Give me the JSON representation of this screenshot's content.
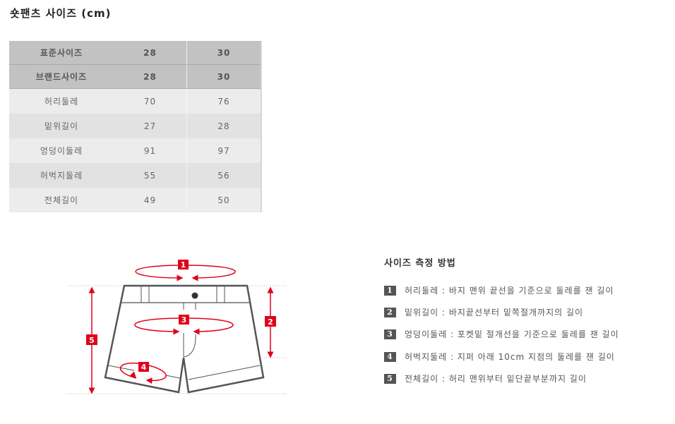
{
  "title": "숏팬츠 사이즈 (cm)",
  "size_table": {
    "header_rows": [
      {
        "label": "표준사이즈",
        "values": [
          "28",
          "30"
        ]
      },
      {
        "label": "브랜드사이즈",
        "values": [
          "28",
          "30"
        ]
      }
    ],
    "rows": [
      {
        "label": "허리둘레",
        "values": [
          "70",
          "76"
        ]
      },
      {
        "label": "밑위길이",
        "values": [
          "27",
          "28"
        ]
      },
      {
        "label": "엉덩이둘레",
        "values": [
          "91",
          "97"
        ]
      },
      {
        "label": "허벅지둘레",
        "values": [
          "55",
          "56"
        ]
      },
      {
        "label": "전체길이",
        "values": [
          "49",
          "50"
        ]
      }
    ]
  },
  "diagram": {
    "markers": [
      "1",
      "2",
      "3",
      "4",
      "5"
    ],
    "accent_color": "#e0001a"
  },
  "method": {
    "title": "사이즈 측정 방법",
    "items": [
      {
        "num": "1",
        "text": "허리둘레 : 바지 맨위 끝선을 기준으로 둘레를 잰 길이"
      },
      {
        "num": "2",
        "text": "밑위길이 : 바지끝선부터 밑쪽절개까지의 길이"
      },
      {
        "num": "3",
        "text": "엉덩이둘레 : 포켓밑 절개선을 기준으로 둘레를 잰 길이"
      },
      {
        "num": "4",
        "text": "허벅지둘레 : 지퍼 아래 10cm 지점의 둘레를 잰 길이"
      },
      {
        "num": "5",
        "text": "전체길이 : 허리 맨위부터 밑단끝부분까지 길이"
      }
    ]
  }
}
